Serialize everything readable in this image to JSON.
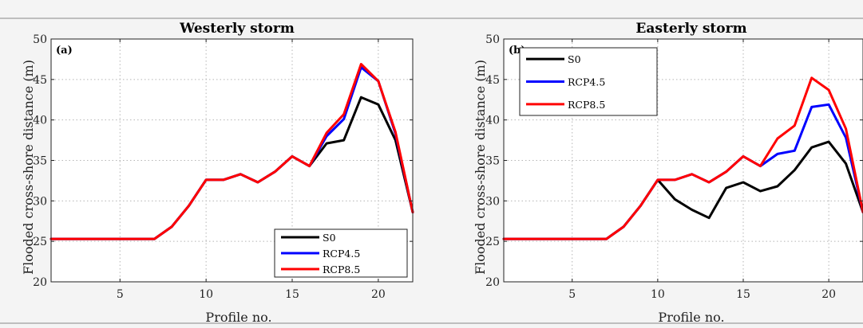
{
  "chart_data": [
    {
      "type": "line",
      "title": "Westerly storm",
      "panel_label": "(a)",
      "xlabel": "Profile no.",
      "ylabel": "Flooded cross-shore distance (m)",
      "xlim": [
        1,
        22
      ],
      "ylim": [
        20,
        50
      ],
      "xticks": [
        5,
        10,
        15,
        20
      ],
      "yticks": [
        20,
        25,
        30,
        35,
        40,
        45,
        50
      ],
      "grid": true,
      "legend_position": "bottom-right",
      "x": [
        1,
        2,
        3,
        4,
        5,
        6,
        7,
        8,
        9,
        10,
        11,
        12,
        13,
        14,
        15,
        16,
        17,
        18,
        19,
        20,
        21,
        22
      ],
      "series": [
        {
          "name": "S0",
          "color": "#000000",
          "values": [
            25.3,
            25.3,
            25.3,
            25.3,
            25.3,
            25.3,
            25.3,
            26.8,
            29.4,
            32.6,
            32.6,
            33.3,
            32.3,
            33.6,
            35.5,
            34.3,
            37.1,
            37.5,
            42.8,
            41.9,
            37.5,
            28.6
          ]
        },
        {
          "name": "RCP4.5",
          "color": "#0000ff",
          "values": [
            25.3,
            25.3,
            25.3,
            25.3,
            25.3,
            25.3,
            25.3,
            26.8,
            29.4,
            32.6,
            32.6,
            33.3,
            32.3,
            33.6,
            35.5,
            34.3,
            38.0,
            40.1,
            46.5,
            44.8,
            38.3,
            28.6
          ]
        },
        {
          "name": "RCP8.5",
          "color": "#ff0000",
          "values": [
            25.3,
            25.3,
            25.3,
            25.3,
            25.3,
            25.3,
            25.3,
            26.8,
            29.4,
            32.6,
            32.6,
            33.3,
            32.3,
            33.6,
            35.5,
            34.3,
            38.4,
            40.7,
            46.9,
            44.8,
            38.5,
            28.6
          ]
        }
      ]
    },
    {
      "type": "line",
      "title": "Easterly storm",
      "panel_label": "(b)",
      "xlabel": "Profile no.",
      "ylabel": "Flooded cross-shore distance (m)",
      "xlim": [
        1,
        22
      ],
      "ylim": [
        20,
        50
      ],
      "xticks": [
        5,
        10,
        15,
        20
      ],
      "yticks": [
        20,
        25,
        30,
        35,
        40,
        45,
        50
      ],
      "grid": true,
      "legend_position": "top-left",
      "x": [
        1,
        2,
        3,
        4,
        5,
        6,
        7,
        8,
        9,
        10,
        11,
        12,
        13,
        14,
        15,
        16,
        17,
        18,
        19,
        20,
        21,
        22
      ],
      "series": [
        {
          "name": "S0",
          "color": "#000000",
          "values": [
            25.3,
            25.3,
            25.3,
            25.3,
            25.3,
            25.3,
            25.3,
            26.8,
            29.4,
            32.6,
            30.2,
            28.9,
            27.9,
            31.6,
            32.3,
            31.2,
            31.8,
            33.8,
            36.6,
            37.3,
            34.6,
            28.6
          ]
        },
        {
          "name": "RCP4.5",
          "color": "#0000ff",
          "values": [
            25.3,
            25.3,
            25.3,
            25.3,
            25.3,
            25.3,
            25.3,
            26.8,
            29.4,
            32.6,
            32.6,
            33.3,
            32.3,
            33.6,
            35.5,
            34.3,
            35.8,
            36.2,
            41.6,
            41.9,
            37.8,
            28.6
          ]
        },
        {
          "name": "RCP8.5",
          "color": "#ff0000",
          "values": [
            25.3,
            25.3,
            25.3,
            25.3,
            25.3,
            25.3,
            25.3,
            26.8,
            29.4,
            32.6,
            32.6,
            33.3,
            32.3,
            33.6,
            35.5,
            34.3,
            37.7,
            39.3,
            45.2,
            43.7,
            38.9,
            28.6
          ]
        }
      ]
    }
  ]
}
